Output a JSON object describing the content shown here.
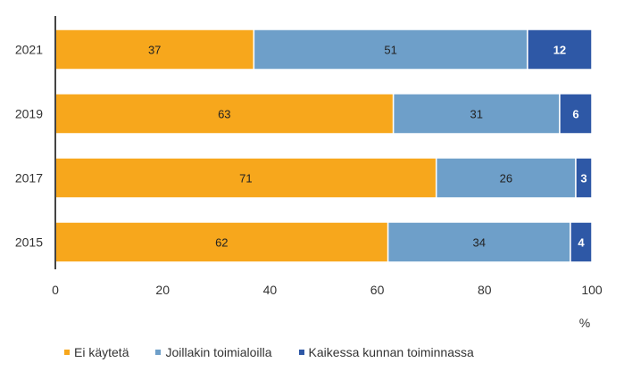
{
  "chart_data": {
    "type": "bar",
    "orientation": "horizontal",
    "stacked": true,
    "categories": [
      "2021",
      "2019",
      "2017",
      "2015"
    ],
    "series": [
      {
        "name": "Ei käytetä",
        "values": [
          37,
          63,
          71,
          62
        ],
        "color": "#F7A71C"
      },
      {
        "name": "Joillakin toimialoilla",
        "values": [
          51,
          31,
          26,
          34
        ],
        "color": "#6E9FC9"
      },
      {
        "name": "Kaikessa kunnan toiminnassa",
        "values": [
          12,
          6,
          3,
          4
        ],
        "color": "#2E58A6"
      }
    ],
    "xticks": [
      "0",
      "20",
      "40",
      "60",
      "80",
      "100"
    ],
    "xlim": [
      0,
      100
    ],
    "xlabel": "%",
    "legend": "bottom",
    "grid": false
  }
}
